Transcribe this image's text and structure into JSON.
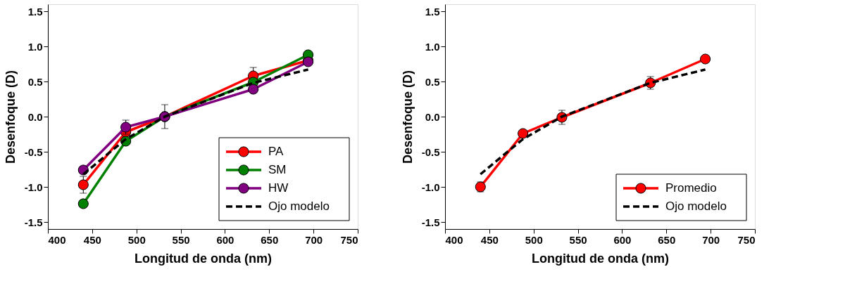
{
  "chart_data": [
    {
      "type": "line",
      "xlabel": "Longitud de onda (nm)",
      "ylabel": "Desenfoque (D)",
      "x": [
        440,
        488,
        532,
        632,
        694
      ],
      "xlim": [
        400,
        750
      ],
      "xticks": [
        400,
        450,
        500,
        550,
        600,
        650,
        700,
        750
      ],
      "ylim": [
        -1.6,
        1.6
      ],
      "yticks": [
        -1.5,
        {
          "value": -1,
          "label": "-1.0"
        },
        -0.5,
        {
          "value": 0,
          "label": "0.0"
        },
        0.5,
        {
          "value": 1,
          "label": "1.0"
        },
        1.5
      ],
      "legend": "bottom right",
      "grid": false,
      "series": [
        {
          "name": "PA",
          "color": "#ff0000",
          "values": [
            -0.97,
            -0.22,
            0,
            0.58,
            0.8
          ],
          "errors": [
            0.12,
            0.05,
            0.17,
            0.12,
            null
          ],
          "marker": "circle",
          "line_style": "solid"
        },
        {
          "name": "SM",
          "color": "#008000",
          "values": [
            -1.24,
            -0.35,
            0,
            0.49,
            0.88
          ],
          "errors": [
            0.05,
            0.04,
            0.05,
            0.05,
            null
          ],
          "marker": "circle",
          "line_style": "solid"
        },
        {
          "name": "HW",
          "color": "#800080",
          "values": [
            -0.76,
            -0.15,
            0,
            0.39,
            0.78
          ],
          "errors": [
            0.05,
            0.1,
            0.05,
            0.05,
            null
          ],
          "marker": "circle",
          "line_style": "solid"
        },
        {
          "name": "Ojo modelo",
          "color": "#000000",
          "values": [
            -0.82,
            -0.32,
            0,
            0.48,
            0.67
          ],
          "marker": "none",
          "line_style": "dashed"
        }
      ]
    },
    {
      "type": "line",
      "xlabel": "Longitud de onda (nm)",
      "ylabel": "Desenfoque (D)",
      "x": [
        440,
        488,
        532,
        632,
        694
      ],
      "xlim": [
        400,
        750
      ],
      "xticks": [
        400,
        450,
        500,
        550,
        600,
        650,
        700,
        750
      ],
      "ylim": [
        -1.6,
        1.6
      ],
      "yticks": [
        -1.5,
        {
          "value": -1,
          "label": "-1.0"
        },
        -0.5,
        {
          "value": 0,
          "label": "0.0"
        },
        0.5,
        {
          "value": 1,
          "label": "1.0"
        },
        1.5
      ],
      "legend": "bottom right",
      "grid": false,
      "series": [
        {
          "name": "Promedio",
          "color": "#ff0000",
          "values": [
            -1.0,
            -0.24,
            -0.01,
            0.48,
            0.82
          ],
          "errors": [
            0.07,
            null,
            0.1,
            0.09,
            null
          ],
          "marker": "circle",
          "line_style": "solid"
        },
        {
          "name": "Ojo modelo",
          "color": "#000000",
          "values": [
            -0.82,
            -0.32,
            0,
            0.48,
            0.67
          ],
          "marker": "none",
          "line_style": "dashed"
        }
      ]
    }
  ]
}
